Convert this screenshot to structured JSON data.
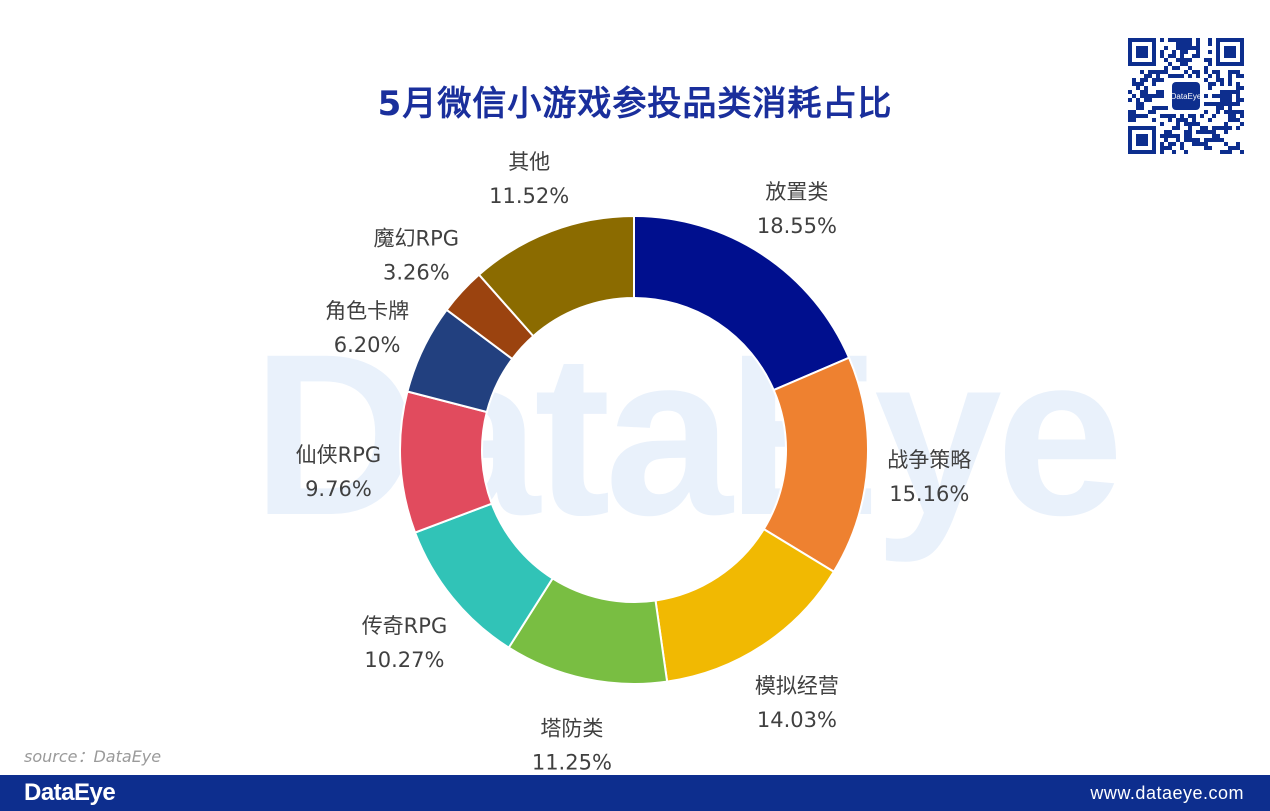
{
  "watermark": "DataEye",
  "source": "source：DataEye",
  "footer": {
    "logo": "DataEye",
    "url": "www.dataeye.com"
  },
  "qr_logo": "DataEye",
  "colors": {
    "title": "#1a2f9c",
    "footer": "#0d2e8e",
    "slices": [
      "#000f8e",
      "#ee8130",
      "#f1b902",
      "#79be42",
      "#31c3b7",
      "#e14b5e",
      "#22407f",
      "#9b430f",
      "#8b6b00"
    ]
  },
  "chart_data": {
    "type": "pie",
    "title": "5月微信小游戏参投品类消耗占比",
    "donut": true,
    "start_angle_deg": 0,
    "direction": "clockwise",
    "slices": [
      {
        "label": "放置类",
        "value": 18.55,
        "display": "18.55%"
      },
      {
        "label": "战争策略",
        "value": 15.16,
        "display": "15.16%"
      },
      {
        "label": "模拟经营",
        "value": 14.03,
        "display": "14.03%"
      },
      {
        "label": "塔防类",
        "value": 11.25,
        "display": "11.25%"
      },
      {
        "label": "传奇RPG",
        "value": 10.27,
        "display": "10.27%"
      },
      {
        "label": "仙侠RPG",
        "value": 9.76,
        "display": "9.76%"
      },
      {
        "label": "角色卡牌",
        "value": 6.2,
        "display": "6.20%"
      },
      {
        "label": "魔幻RPG",
        "value": 3.26,
        "display": "3.26%"
      },
      {
        "label": "其他",
        "value": 11.52,
        "display": "11.52%"
      }
    ]
  }
}
